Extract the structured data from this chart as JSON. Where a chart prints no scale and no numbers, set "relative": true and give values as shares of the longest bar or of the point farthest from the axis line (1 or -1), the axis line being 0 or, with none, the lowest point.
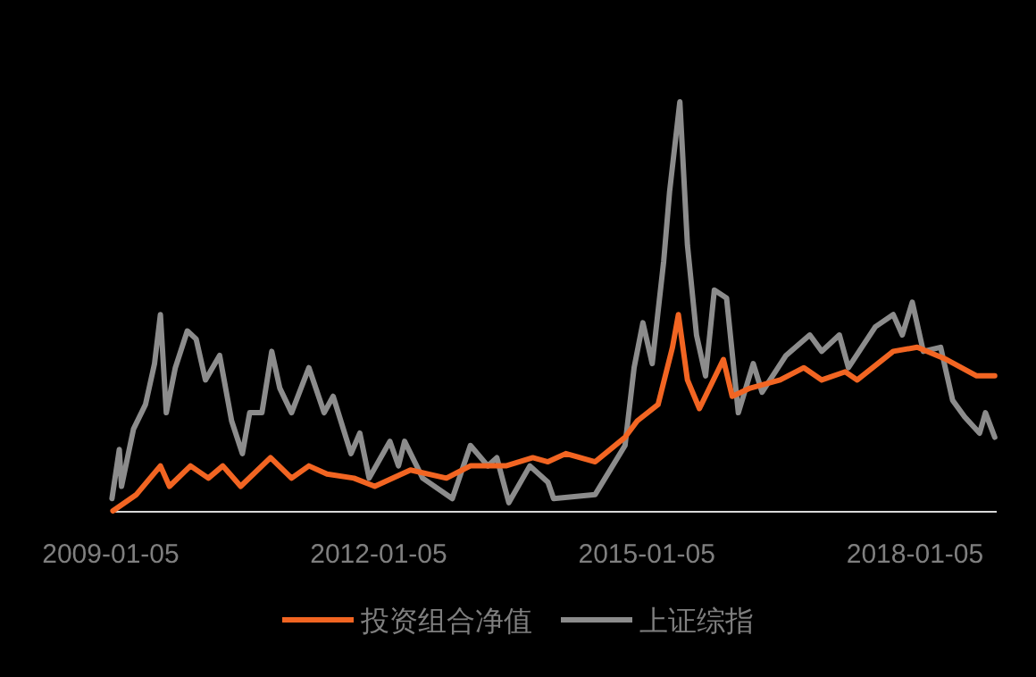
{
  "chart_data": {
    "type": "line",
    "relative": true,
    "xlim": [
      "2009-01-05",
      "2018-12-05"
    ],
    "xticks": [
      "2009-01-05",
      "2012-01-05",
      "2015-01-05",
      "2018-01-05"
    ],
    "legend": "bottom",
    "series": [
      {
        "name": "投资组合净值",
        "color": "#f26522",
        "x": [
          "2009-01-14",
          "2009-04-20",
          "2009-07-27",
          "2009-09-02",
          "2009-11-27",
          "2010-02-08",
          "2010-04-08",
          "2010-06-20",
          "2010-10-20",
          "2011-01-14",
          "2011-03-26",
          "2011-06-08",
          "2011-09-26",
          "2011-12-20",
          "2012-05-14",
          "2012-10-08",
          "2013-01-14",
          "2013-06-08",
          "2013-09-26",
          "2013-11-27",
          "2014-02-08",
          "2014-06-08",
          "2014-10-08",
          "2014-11-27",
          "2015-02-20",
          "2015-04-20",
          "2015-05-14",
          "2015-06-20",
          "2015-08-08",
          "2015-11-14",
          "2015-12-20",
          "2016-03-02",
          "2016-07-03",
          "2016-10-08",
          "2016-12-20",
          "2017-03-26",
          "2017-05-14",
          "2017-10-08",
          "2018-01-14",
          "2018-05-14",
          "2018-09-14",
          "2018-11-27"
        ],
        "values": [
          0.0,
          0.04,
          0.11,
          0.06,
          0.11,
          0.08,
          0.11,
          0.06,
          0.13,
          0.08,
          0.11,
          0.09,
          0.08,
          0.06,
          0.1,
          0.08,
          0.11,
          0.11,
          0.13,
          0.12,
          0.14,
          0.12,
          0.18,
          0.22,
          0.26,
          0.4,
          0.48,
          0.32,
          0.25,
          0.37,
          0.28,
          0.3,
          0.32,
          0.35,
          0.32,
          0.34,
          0.32,
          0.39,
          0.4,
          0.37,
          0.33,
          0.33
        ]
      },
      {
        "name": "上证综指",
        "color": "#8c8c8c",
        "x": [
          "2009-01-10",
          "2009-02-09",
          "2009-02-18",
          "2009-04-08",
          "2009-05-27",
          "2009-07-03",
          "2009-07-27",
          "2009-08-20",
          "2009-09-26",
          "2009-11-14",
          "2009-12-20",
          "2010-01-27",
          "2010-03-26",
          "2010-05-14",
          "2010-06-27",
          "2010-07-27",
          "2010-09-15",
          "2010-10-25",
          "2010-11-27",
          "2011-01-14",
          "2011-03-26",
          "2011-05-27",
          "2011-07-03",
          "2011-09-14",
          "2011-10-20",
          "2011-11-27",
          "2012-02-20",
          "2012-03-26",
          "2012-04-20",
          "2012-07-03",
          "2012-11-01",
          "2013-01-14",
          "2013-03-26",
          "2013-05-02",
          "2013-06-20",
          "2013-09-14",
          "2013-11-27",
          "2013-12-20",
          "2014-06-08",
          "2014-10-08",
          "2014-11-14",
          "2014-12-20",
          "2015-01-27",
          "2015-03-15",
          "2015-04-08",
          "2015-05-20",
          "2015-06-20",
          "2015-07-27",
          "2015-09-02",
          "2015-10-08",
          "2015-11-27",
          "2016-01-14",
          "2016-03-15",
          "2016-04-20",
          "2016-07-27",
          "2016-11-01",
          "2016-12-20",
          "2017-03-02",
          "2017-04-08",
          "2017-07-27",
          "2017-10-08",
          "2017-11-14",
          "2017-12-25",
          "2018-02-08",
          "2018-04-20",
          "2018-06-08",
          "2018-07-27",
          "2018-09-26",
          "2018-10-20",
          "2018-11-27"
        ],
        "values": [
          0.03,
          0.15,
          0.06,
          0.2,
          0.26,
          0.36,
          0.48,
          0.24,
          0.35,
          0.44,
          0.42,
          0.32,
          0.38,
          0.22,
          0.14,
          0.24,
          0.24,
          0.39,
          0.3,
          0.24,
          0.35,
          0.24,
          0.28,
          0.14,
          0.19,
          0.08,
          0.17,
          0.11,
          0.17,
          0.08,
          0.03,
          0.16,
          0.11,
          0.13,
          0.02,
          0.11,
          0.07,
          0.03,
          0.04,
          0.16,
          0.35,
          0.46,
          0.36,
          0.61,
          0.78,
          1.0,
          0.65,
          0.43,
          0.33,
          0.54,
          0.52,
          0.24,
          0.36,
          0.29,
          0.38,
          0.43,
          0.39,
          0.43,
          0.35,
          0.45,
          0.48,
          0.43,
          0.51,
          0.39,
          0.4,
          0.27,
          0.23,
          0.19,
          0.24,
          0.18
        ]
      }
    ]
  }
}
